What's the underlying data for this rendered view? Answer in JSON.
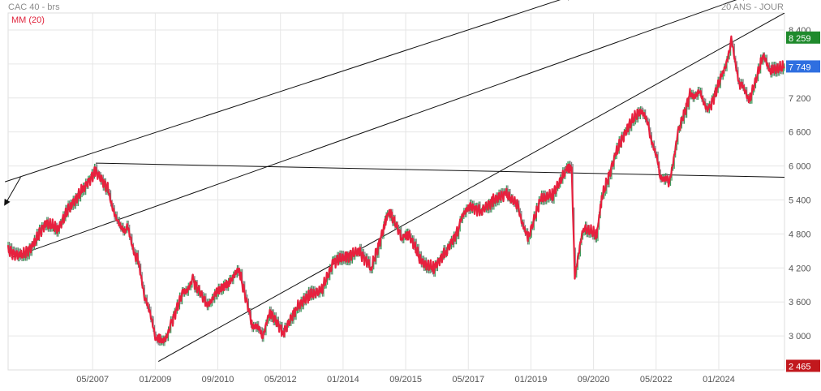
{
  "header": {
    "title": "CAC 40 - brs",
    "period": "20 ANS - JOUR",
    "legend": "MM (20)"
  },
  "colors": {
    "ma_line": "#e8203e",
    "candle_up": "#3a9a5a",
    "candle_down": "#7a7a7a",
    "grid": "#e6e6e6",
    "trendline": "#111111",
    "badge_high": "#1f8a2c",
    "badge_last": "#2f6fe0",
    "badge_low": "#c2181d"
  },
  "chart_data": {
    "type": "line",
    "title": "CAC 40 - brs",
    "legend": [
      "MM (20)"
    ],
    "x_ticks": [
      "05/2007",
      "01/2009",
      "09/2010",
      "05/2012",
      "01/2014",
      "09/2015",
      "05/2017",
      "01/2019",
      "09/2020",
      "05/2022",
      "01/2024"
    ],
    "y_ticks": [
      3000,
      3600,
      4200,
      4800,
      5400,
      6000,
      6600,
      7200,
      7800,
      8400
    ],
    "y_tick_labels": [
      "3 000",
      "3 600",
      "4 200",
      "4 800",
      "5 400",
      "6 000",
      "6 600",
      "7 200",
      "7 800",
      "8 400"
    ],
    "ylim": [
      2400,
      8700
    ],
    "xlim": [
      "2005-02",
      "2025-10"
    ],
    "grid": true,
    "badges": [
      {
        "label": "8 259",
        "value": 8259,
        "kind": "high"
      },
      {
        "label": "7 749",
        "value": 7749,
        "kind": "last"
      },
      {
        "label": "2 465",
        "value": 2465,
        "kind": "low"
      }
    ],
    "series": [
      {
        "name": "MM (20)",
        "x": [
          "2005-02",
          "2005-06",
          "2005-10",
          "2006-02",
          "2006-06",
          "2006-10",
          "2007-02",
          "2007-06",
          "2007-10",
          "2008-01",
          "2008-04",
          "2008-07",
          "2008-10",
          "2009-01",
          "2009-03",
          "2009-06",
          "2009-10",
          "2010-01",
          "2010-05",
          "2010-08",
          "2011-01",
          "2011-04",
          "2011-08",
          "2011-11",
          "2012-02",
          "2012-06",
          "2012-10",
          "2013-02",
          "2013-06",
          "2013-10",
          "2014-02",
          "2014-06",
          "2014-10",
          "2015-02",
          "2015-04",
          "2015-08",
          "2015-10",
          "2016-02",
          "2016-06",
          "2016-10",
          "2017-02",
          "2017-05",
          "2017-09",
          "2018-01",
          "2018-05",
          "2018-09",
          "2018-12",
          "2019-04",
          "2019-08",
          "2019-12",
          "2020-02",
          "2020-03",
          "2020-06",
          "2020-10",
          "2020-12",
          "2021-04",
          "2021-08",
          "2021-12",
          "2022-03",
          "2022-06",
          "2022-09",
          "2022-12",
          "2023-04",
          "2023-07",
          "2023-10",
          "2024-02",
          "2024-05",
          "2024-08",
          "2024-11",
          "2025-03",
          "2025-06",
          "2025-10"
        ],
        "y": [
          4500,
          4400,
          4600,
          5000,
          4900,
          5300,
          5600,
          5900,
          5600,
          5000,
          4900,
          4400,
          3600,
          3000,
          2900,
          3200,
          3800,
          4000,
          3600,
          3700,
          4000,
          4100,
          3200,
          3000,
          3400,
          3050,
          3500,
          3700,
          3800,
          4300,
          4400,
          4500,
          4200,
          4900,
          5200,
          4700,
          4800,
          4300,
          4200,
          4500,
          4900,
          5300,
          5200,
          5400,
          5500,
          5300,
          4700,
          5400,
          5500,
          5900,
          6000,
          4100,
          4900,
          4800,
          5500,
          6200,
          6700,
          7000,
          6600,
          5900,
          5700,
          6600,
          7300,
          7300,
          7000,
          7600,
          8200,
          7400,
          7200,
          7900,
          7700,
          7749
        ]
      }
    ],
    "trendlines": [
      {
        "x1": "2005-01",
        "y1": 5720,
        "x2": "2020-02",
        "y2": 9000
      },
      {
        "x1": "2005-03",
        "y1": 4380,
        "x2": "2024-10",
        "y2": 9000
      },
      {
        "x1": "2007-06",
        "y1": 6050,
        "x2": "2025-10",
        "y2": 5800
      },
      {
        "x1": "2009-02",
        "y1": 2550,
        "x2": "2025-10",
        "y2": 8700
      },
      {
        "x1": "2005-06",
        "y1": 5800,
        "x2": "2005-01",
        "y2": 5320
      }
    ]
  }
}
